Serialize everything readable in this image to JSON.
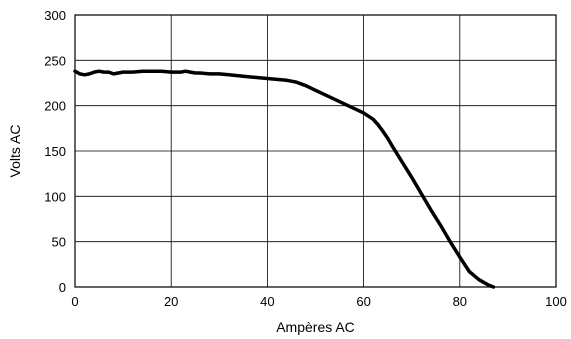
{
  "chart_data": {
    "type": "line",
    "title": "",
    "xlabel": "Ampères AC",
    "ylabel": "Volts AC",
    "xlim": [
      0,
      100
    ],
    "ylim": [
      0,
      300
    ],
    "x_ticks": [
      "0",
      "20",
      "40",
      "60",
      "80",
      "100"
    ],
    "y_ticks": [
      "0",
      "50",
      "100",
      "150",
      "200",
      "250",
      "300"
    ],
    "grid": true,
    "line_color": "#000000",
    "series": [
      {
        "x": [
          0,
          1,
          2,
          3,
          4,
          5,
          6,
          7,
          8,
          9,
          10,
          12,
          14,
          16,
          18,
          20,
          22,
          23,
          24,
          25,
          26,
          28,
          30,
          32,
          34,
          36,
          38,
          40,
          42,
          44,
          45,
          46,
          48,
          50,
          52,
          54,
          56,
          58,
          60,
          62,
          63,
          64,
          65,
          66,
          68,
          70,
          72,
          74,
          76,
          78,
          80,
          82,
          84,
          86,
          87
        ],
        "y": [
          238,
          235,
          234,
          235,
          237,
          238,
          237,
          237,
          235,
          236,
          237,
          237,
          238,
          238,
          238,
          237,
          237,
          238,
          237,
          236,
          236,
          235,
          235,
          234,
          233,
          232,
          231,
          230,
          229,
          228,
          227,
          226,
          222,
          217,
          212,
          207,
          202,
          197,
          192,
          185,
          179,
          172,
          164,
          155,
          138,
          121,
          103,
          85,
          68,
          50,
          33,
          17,
          8,
          2,
          0
        ]
      }
    ]
  }
}
